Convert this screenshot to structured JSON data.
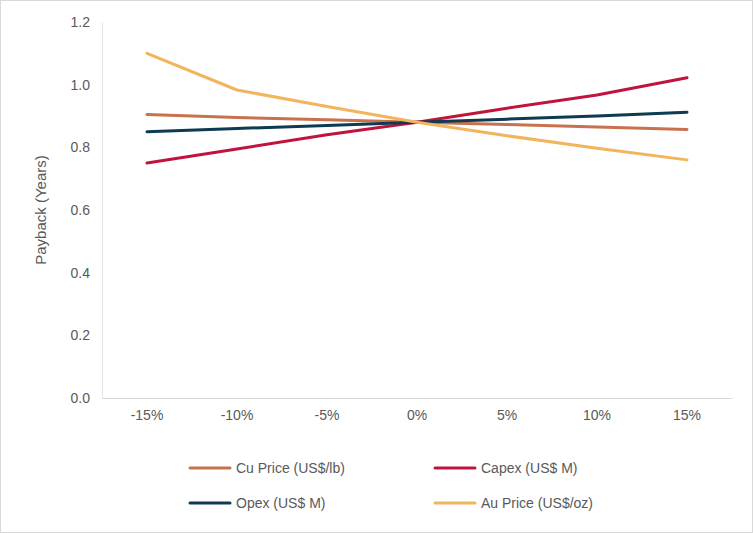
{
  "chart_data": {
    "type": "line",
    "y_label": "Payback (Years)",
    "categories": [
      "-15%",
      "-10%",
      "-5%",
      "0%",
      "5%",
      "10%",
      "15%"
    ],
    "series": [
      {
        "name": "Cu Price (US$/lb)",
        "color": "#c8714f",
        "values": [
          0.905,
          0.895,
          0.888,
          0.88,
          0.873,
          0.865,
          0.857
        ]
      },
      {
        "name": "Capex (US$ M)",
        "color": "#c0143c",
        "values": [
          0.75,
          0.795,
          0.84,
          0.88,
          0.925,
          0.967,
          1.022
        ]
      },
      {
        "name": "Opex (US$ M)",
        "color": "#0e3a52",
        "values": [
          0.85,
          0.86,
          0.87,
          0.88,
          0.89,
          0.9,
          0.912
        ]
      },
      {
        "name": "Au Price (US$/oz)",
        "color": "#f2b45c",
        "values": [
          1.1,
          0.983,
          0.93,
          0.88,
          0.837,
          0.797,
          0.76
        ]
      }
    ],
    "ylim": [
      0,
      1.2
    ],
    "yticks": [
      {
        "value": 0,
        "label": "0.0"
      },
      {
        "value": 0.2,
        "label": "0.2"
      },
      {
        "value": 0.4,
        "label": "0.4"
      },
      {
        "value": 0.6,
        "label": "0.6"
      },
      {
        "value": 0.8,
        "label": "0.8"
      },
      {
        "value": 1,
        "label": "1.0"
      },
      {
        "value": 1.2,
        "label": "1.2"
      }
    ],
    "grid": false,
    "legend": "bottom"
  }
}
